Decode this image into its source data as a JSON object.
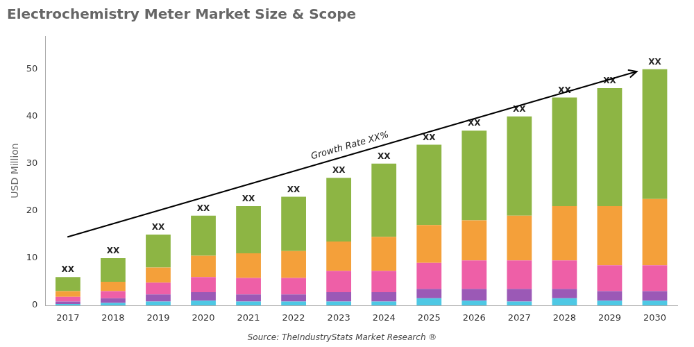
{
  "chart_data": {
    "type": "bar",
    "stacked": true,
    "title": "Electrochemistry Meter Market Size & Scope",
    "ylabel": "USD Million",
    "source": "Source: TheIndustryStats Market Research ®",
    "categories": [
      "2017",
      "2018",
      "2019",
      "2020",
      "2021",
      "2022",
      "2023",
      "2024",
      "2025",
      "2026",
      "2027",
      "2028",
      "2029",
      "2030"
    ],
    "series": [
      {
        "color": "#4ec8e4",
        "values": [
          0.3,
          0.5,
          0.8,
          1.0,
          0.8,
          0.8,
          0.8,
          0.8,
          1.5,
          1.0,
          0.8,
          1.5,
          1.0,
          1.0
        ]
      },
      {
        "color": "#9b59b6",
        "values": [
          0.5,
          1.0,
          1.5,
          1.8,
          1.5,
          1.5,
          2.0,
          2.0,
          2.0,
          2.5,
          2.7,
          2.0,
          2.0,
          2.0
        ]
      },
      {
        "color": "#ee5fa7",
        "values": [
          1.0,
          1.5,
          2.5,
          3.2,
          3.5,
          3.5,
          4.5,
          4.5,
          5.5,
          6.0,
          6.0,
          6.0,
          5.5,
          5.5
        ]
      },
      {
        "color": "#f4a03a",
        "values": [
          1.2,
          2.0,
          3.2,
          4.5,
          5.2,
          5.7,
          6.2,
          7.2,
          8.0,
          8.5,
          9.5,
          11.5,
          12.5,
          14.0
        ]
      },
      {
        "color": "#8db544",
        "values": [
          3.0,
          5.0,
          7.0,
          8.5,
          10.0,
          11.5,
          13.5,
          15.5,
          17.0,
          19.0,
          21.0,
          23.0,
          25.0,
          27.5
        ]
      }
    ],
    "bar_labels": [
      "XX",
      "XX",
      "XX",
      "XX",
      "XX",
      "XX",
      "XX",
      "XX",
      "XX",
      "XX",
      "XX",
      "XX",
      "XX",
      "XX"
    ],
    "annotations": [
      {
        "type": "arrow",
        "text": "Growth Rate XX%",
        "x": [
          0.0,
          12.6
        ],
        "y": [
          14.5,
          49.5
        ]
      }
    ],
    "ylim": [
      0,
      57
    ],
    "yticks": [
      0,
      10,
      20,
      30,
      40,
      50
    ],
    "grid": false,
    "legend": false
  }
}
